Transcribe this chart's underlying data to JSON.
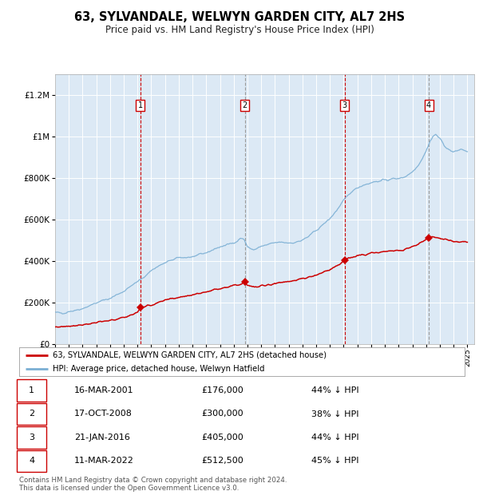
{
  "title": "63, SYLVANDALE, WELWYN GARDEN CITY, AL7 2HS",
  "subtitle": "Price paid vs. HM Land Registry's House Price Index (HPI)",
  "plot_bg_color": "#dce9f5",
  "red_line_color": "#cc0000",
  "blue_line_color": "#7bafd4",
  "grid_color": "#ffffff",
  "sale_dates": [
    2001.21,
    2008.8,
    2016.06,
    2022.19
  ],
  "sale_prices": [
    176000,
    300000,
    405000,
    512500
  ],
  "sale_labels": [
    "1",
    "2",
    "3",
    "4"
  ],
  "sale_date_strs": [
    "16-MAR-2001",
    "17-OCT-2008",
    "21-JAN-2016",
    "11-MAR-2022"
  ],
  "sale_price_strs": [
    "£176,000",
    "£300,000",
    "£405,000",
    "£512,500"
  ],
  "sale_hpi_strs": [
    "44% ↓ HPI",
    "38% ↓ HPI",
    "44% ↓ HPI",
    "45% ↓ HPI"
  ],
  "ylim": [
    0,
    1300000
  ],
  "xlim_start": 1995.0,
  "xlim_end": 2025.5,
  "legend_line1": "63, SYLVANDALE, WELWYN GARDEN CITY, AL7 2HS (detached house)",
  "legend_line2": "HPI: Average price, detached house, Welwyn Hatfield",
  "footer1": "Contains HM Land Registry data © Crown copyright and database right 2024.",
  "footer2": "This data is licensed under the Open Government Licence v3.0."
}
